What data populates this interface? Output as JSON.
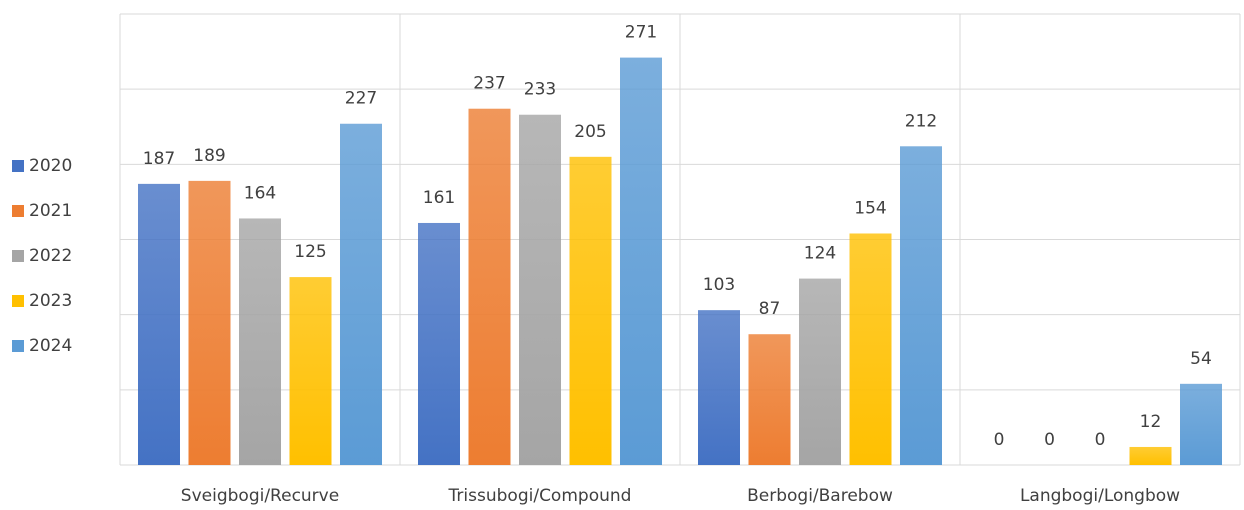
{
  "chart_data": {
    "type": "bar",
    "categories": [
      "Sveigbogi/Recurve",
      "Trissubogi/Compound",
      "Berbogi/Barebow",
      "Langbogi/Longbow"
    ],
    "series": [
      {
        "name": "2020",
        "color": "#4472c4",
        "values": [
          187,
          161,
          103,
          0
        ]
      },
      {
        "name": "2021",
        "color": "#ed7d31",
        "values": [
          189,
          237,
          87,
          0
        ]
      },
      {
        "name": "2022",
        "color": "#a5a5a5",
        "values": [
          164,
          233,
          124,
          0
        ]
      },
      {
        "name": "2023",
        "color": "#ffc000",
        "values": [
          125,
          205,
          154,
          12
        ]
      },
      {
        "name": "2024",
        "color": "#5b9bd5",
        "values": [
          227,
          271,
          212,
          54
        ]
      }
    ],
    "ylim": [
      0,
      300
    ],
    "yticks": [
      0,
      50,
      100,
      150,
      200,
      250,
      300
    ],
    "grid": true,
    "legend": "left"
  }
}
